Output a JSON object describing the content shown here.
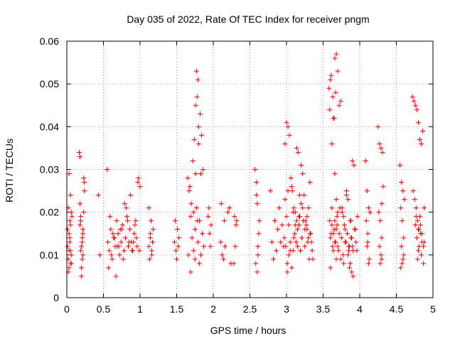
{
  "chart_data": {
    "type": "scatter",
    "title": "Day 035 of 2022, Rate Of TEC Index for receiver pngm",
    "xlabel": "GPS time / hours",
    "ylabel": "ROTI / TECUs",
    "xlim": [
      0,
      5
    ],
    "ylim": [
      0,
      0.06
    ],
    "grid": true,
    "marker": "+",
    "color": "#ff0000",
    "xticks": [
      0,
      0.5,
      1,
      1.5,
      2,
      2.5,
      3,
      3.5,
      4,
      4.5,
      5
    ],
    "xtick_labels": [
      "0",
      "0.5",
      "1",
      "1.5",
      "2",
      "2.5",
      "3",
      "3.5",
      "4",
      "4.5",
      "5"
    ],
    "yticks": [
      0,
      0.01,
      0.02,
      0.03,
      0.04,
      0.05,
      0.06
    ],
    "ytick_labels": [
      "0",
      "0.01",
      "0.02",
      "0.03",
      "0.04",
      "0.05",
      "0.06"
    ],
    "series": [
      {
        "name": "ROTI",
        "x": [
          0.01,
          0.02,
          0.03,
          0.03,
          0.04,
          0.05,
          0.05,
          0.06,
          0.02,
          0.04,
          0.06,
          0.01,
          0.03,
          0.05,
          0.07,
          0.02,
          0.04,
          0.06,
          0.03,
          0.05,
          0.17,
          0.18,
          0.19,
          0.2,
          0.21,
          0.22,
          0.23,
          0.18,
          0.2,
          0.22,
          0.24,
          0.19,
          0.21,
          0.23,
          0.2,
          0.22,
          0.18,
          0.21,
          0.24,
          0.19,
          0.43,
          0.45,
          0.56,
          0.58,
          0.6,
          0.62,
          0.64,
          0.66,
          0.68,
          0.7,
          0.72,
          0.74,
          0.76,
          0.78,
          0.8,
          0.82,
          0.84,
          0.86,
          0.88,
          0.9,
          0.92,
          0.94,
          0.96,
          0.57,
          0.61,
          0.65,
          0.69,
          0.73,
          0.77,
          0.81,
          0.85,
          0.89,
          0.93,
          0.95,
          0.55,
          0.59,
          0.63,
          0.67,
          0.71,
          0.75,
          0.79,
          0.83,
          0.87,
          0.91,
          0.97,
          0.98,
          1.0,
          0.99,
          1.12,
          1.14,
          1.16,
          1.18,
          1.13,
          1.15,
          1.17,
          1.12,
          1.16,
          1.14,
          1.47,
          1.49,
          1.51,
          1.53,
          1.48,
          1.5,
          1.52,
          1.65,
          1.67,
          1.69,
          1.71,
          1.73,
          1.75,
          1.77,
          1.79,
          1.81,
          1.83,
          1.85,
          1.87,
          1.68,
          1.72,
          1.76,
          1.8,
          1.84,
          1.74,
          1.78,
          1.82,
          1.77,
          1.79,
          1.76,
          1.8,
          1.78,
          1.75,
          1.81,
          1.7,
          1.73,
          1.83,
          1.86,
          1.66,
          1.69,
          1.93,
          1.95,
          1.97,
          1.94,
          1.96,
          2.1,
          2.12,
          2.14,
          2.16,
          2.2,
          2.22,
          2.24,
          2.11,
          2.15,
          2.28,
          2.3,
          2.32,
          2.29,
          2.31,
          2.57,
          2.59,
          2.61,
          2.63,
          2.58,
          2.6,
          2.62,
          2.6,
          2.61,
          2.59,
          2.78,
          2.8,
          2.82,
          2.84,
          2.86,
          2.88,
          2.9,
          2.92,
          2.94,
          2.96,
          2.98,
          3.0,
          3.02,
          3.04,
          3.06,
          3.08,
          3.1,
          3.12,
          3.14,
          3.16,
          3.18,
          3.2,
          3.22,
          3.24,
          3.26,
          3.28,
          3.3,
          3.32,
          3.34,
          3.36,
          2.97,
          2.99,
          3.01,
          3.03,
          3.05,
          3.07,
          3.09,
          3.11,
          3.13,
          3.15,
          3.17,
          3.19,
          3.21,
          3.23,
          3.25,
          3.27,
          3.29,
          3.31,
          3.33,
          3.35,
          2.98,
          3.0,
          3.02,
          3.1,
          3.12,
          3.14,
          3.2,
          3.25,
          3.03,
          3.05,
          3.07,
          3.15,
          3.18,
          3.22,
          3.28,
          3.3,
          3.32,
          3.01,
          3.09,
          3.17,
          3.58,
          3.6,
          3.62,
          3.64,
          3.66,
          3.68,
          3.7,
          3.72,
          3.74,
          3.76,
          3.78,
          3.8,
          3.82,
          3.84,
          3.86,
          3.88,
          3.9,
          3.92,
          3.94,
          3.96,
          3.59,
          3.61,
          3.63,
          3.65,
          3.67,
          3.69,
          3.71,
          3.73,
          3.75,
          3.77,
          3.79,
          3.81,
          3.83,
          3.85,
          3.87,
          3.89,
          3.91,
          3.93,
          3.95,
          3.97,
          3.6,
          3.62,
          3.64,
          3.66,
          3.68,
          3.7,
          3.72,
          3.74,
          3.76,
          3.78,
          3.8,
          3.82,
          3.84,
          3.86,
          3.88,
          3.9,
          3.62,
          3.64,
          3.66,
          3.68,
          3.6,
          3.59,
          3.61,
          3.63,
          3.65,
          3.67,
          3.66,
          3.68,
          3.7,
          3.69,
          3.85,
          3.87,
          3.89,
          3.91,
          4.08,
          4.1,
          4.12,
          4.14,
          4.09,
          4.11,
          4.13,
          4.1,
          4.12,
          4.11,
          4.25,
          4.27,
          4.29,
          4.31,
          4.26,
          4.28,
          4.3,
          4.27,
          4.29,
          4.3,
          4.28,
          4.3,
          4.32,
          4.55,
          4.57,
          4.59,
          4.61,
          4.56,
          4.58,
          4.6,
          4.57,
          4.59,
          4.58,
          4.6,
          4.56,
          4.72,
          4.74,
          4.76,
          4.78,
          4.8,
          4.82,
          4.84,
          4.86,
          4.88,
          4.73,
          4.75,
          4.77,
          4.79,
          4.81,
          4.83,
          4.85,
          4.87,
          4.76,
          4.8,
          4.84,
          4.78,
          4.8,
          4.82,
          4.79,
          4.81,
          4.83,
          4.77,
          4.85,
          4.87,
          4.88
        ],
        "y": [
          0.012,
          0.009,
          0.015,
          0.007,
          0.018,
          0.011,
          0.024,
          0.01,
          0.021,
          0.013,
          0.008,
          0.016,
          0.029,
          0.017,
          0.019,
          0.006,
          0.014,
          0.02,
          0.011,
          0.008,
          0.034,
          0.033,
          0.018,
          0.012,
          0.009,
          0.015,
          0.028,
          0.022,
          0.007,
          0.016,
          0.027,
          0.011,
          0.014,
          0.02,
          0.005,
          0.01,
          0.017,
          0.013,
          0.025,
          0.019,
          0.024,
          0.01,
          0.013,
          0.011,
          0.016,
          0.009,
          0.014,
          0.012,
          0.018,
          0.015,
          0.01,
          0.013,
          0.017,
          0.011,
          0.014,
          0.019,
          0.012,
          0.016,
          0.013,
          0.011,
          0.015,
          0.018,
          0.012,
          0.007,
          0.01,
          0.014,
          0.012,
          0.016,
          0.009,
          0.021,
          0.013,
          0.011,
          0.017,
          0.014,
          0.03,
          0.019,
          0.015,
          0.005,
          0.012,
          0.016,
          0.022,
          0.018,
          0.024,
          0.013,
          0.027,
          0.028,
          0.026,
          0.011,
          0.021,
          0.014,
          0.011,
          0.016,
          0.009,
          0.018,
          0.013,
          0.012,
          0.01,
          0.015,
          0.013,
          0.011,
          0.016,
          0.014,
          0.018,
          0.009,
          0.012,
          0.028,
          0.025,
          0.019,
          0.014,
          0.011,
          0.016,
          0.021,
          0.013,
          0.018,
          0.01,
          0.015,
          0.012,
          0.026,
          0.032,
          0.029,
          0.036,
          0.038,
          0.037,
          0.047,
          0.043,
          0.053,
          0.051,
          0.045,
          0.04,
          0.018,
          0.009,
          0.008,
          0.022,
          0.02,
          0.029,
          0.03,
          0.01,
          0.006,
          0.019,
          0.015,
          0.017,
          0.021,
          0.012,
          0.013,
          0.01,
          0.009,
          0.012,
          0.02,
          0.021,
          0.008,
          0.022,
          0.018,
          0.008,
          0.012,
          0.018,
          0.019,
          0.017,
          0.03,
          0.027,
          0.012,
          0.018,
          0.008,
          0.022,
          0.015,
          0.006,
          0.01,
          0.024,
          0.025,
          0.013,
          0.009,
          0.018,
          0.011,
          0.016,
          0.021,
          0.013,
          0.017,
          0.012,
          0.036,
          0.041,
          0.04,
          0.038,
          0.028,
          0.025,
          0.021,
          0.017,
          0.035,
          0.034,
          0.019,
          0.031,
          0.029,
          0.024,
          0.018,
          0.016,
          0.021,
          0.015,
          0.013,
          0.009,
          0.014,
          0.012,
          0.008,
          0.017,
          0.011,
          0.007,
          0.02,
          0.015,
          0.013,
          0.016,
          0.019,
          0.011,
          0.014,
          0.018,
          0.012,
          0.017,
          0.013,
          0.009,
          0.015,
          0.011,
          0.023,
          0.019,
          0.025,
          0.014,
          0.02,
          0.018,
          0.022,
          0.016,
          0.01,
          0.013,
          0.026,
          0.012,
          0.024,
          0.021,
          0.019,
          0.014,
          0.027,
          0.006,
          0.011,
          0.017,
          0.049,
          0.051,
          0.036,
          0.042,
          0.056,
          0.057,
          0.053,
          0.045,
          0.046,
          0.021,
          0.019,
          0.016,
          0.025,
          0.023,
          0.012,
          0.018,
          0.032,
          0.031,
          0.016,
          0.011,
          0.018,
          0.015,
          0.012,
          0.016,
          0.013,
          0.019,
          0.011,
          0.021,
          0.014,
          0.01,
          0.017,
          0.013,
          0.015,
          0.012,
          0.018,
          0.014,
          0.011,
          0.016,
          0.013,
          0.019,
          0.014,
          0.017,
          0.011,
          0.013,
          0.016,
          0.012,
          0.015,
          0.009,
          0.02,
          0.008,
          0.013,
          0.024,
          0.01,
          0.007,
          0.014,
          0.012,
          0.021,
          0.015,
          0.018,
          0.009,
          0.007,
          0.044,
          0.052,
          0.047,
          0.042,
          0.048,
          0.029,
          0.023,
          0.02,
          0.017,
          0.011,
          0.008,
          0.006,
          0.005,
          0.032,
          0.025,
          0.021,
          0.02,
          0.018,
          0.015,
          0.009,
          0.012,
          0.008,
          0.013,
          0.04,
          0.036,
          0.035,
          0.034,
          0.02,
          0.018,
          0.014,
          0.012,
          0.01,
          0.009,
          0.008,
          0.022,
          0.026,
          0.031,
          0.027,
          0.025,
          0.023,
          0.021,
          0.018,
          0.014,
          0.012,
          0.009,
          0.008,
          0.01,
          0.007,
          0.047,
          0.046,
          0.045,
          0.044,
          0.041,
          0.037,
          0.036,
          0.039,
          0.021,
          0.025,
          0.023,
          0.019,
          0.018,
          0.016,
          0.015,
          0.013,
          0.012,
          0.017,
          0.011,
          0.01,
          0.014,
          0.016,
          0.019,
          0.009,
          0.012,
          0.017,
          0.021,
          0.015,
          0.008,
          0.013
        ]
      }
    ]
  }
}
